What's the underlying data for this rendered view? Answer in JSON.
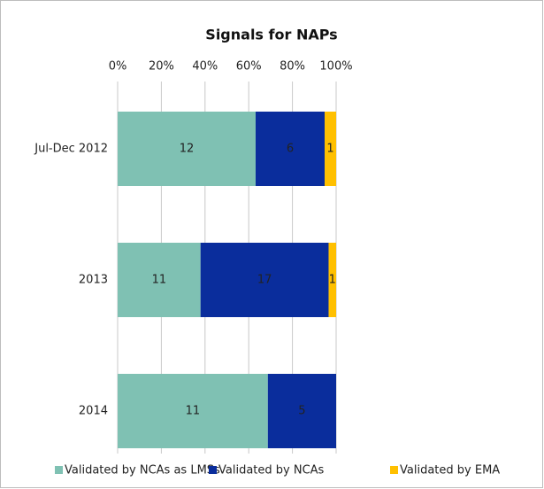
{
  "chart_data": {
    "type": "bar",
    "orientation": "horizontal",
    "stacking": "percent",
    "title": "Signals for NAPs",
    "categories": [
      "Jul-Dec 2012",
      "2013",
      "2014"
    ],
    "series": [
      {
        "name": "Validated by NCAs as LMSs",
        "color": "#7fc1b3",
        "label_color": "#222222",
        "values": [
          12,
          11,
          11
        ]
      },
      {
        "name": "Validated by NCAs",
        "color": "#0a2d9c",
        "label_color": "#ffffff",
        "values": [
          6,
          17,
          5
        ]
      },
      {
        "name": "Validated by EMA",
        "color": "#ffc000",
        "label_color": "#222222",
        "values": [
          1,
          1,
          0
        ]
      }
    ],
    "xlim": [
      0,
      100
    ],
    "xticks": [
      {
        "value": 0,
        "label": "0%"
      },
      {
        "value": 20,
        "label": "20%"
      },
      {
        "value": 40,
        "label": "40%"
      },
      {
        "value": 60,
        "label": "60%"
      },
      {
        "value": 80,
        "label": "80%"
      },
      {
        "value": 100,
        "label": "100%"
      }
    ],
    "grid": true,
    "legend": "bottom"
  }
}
